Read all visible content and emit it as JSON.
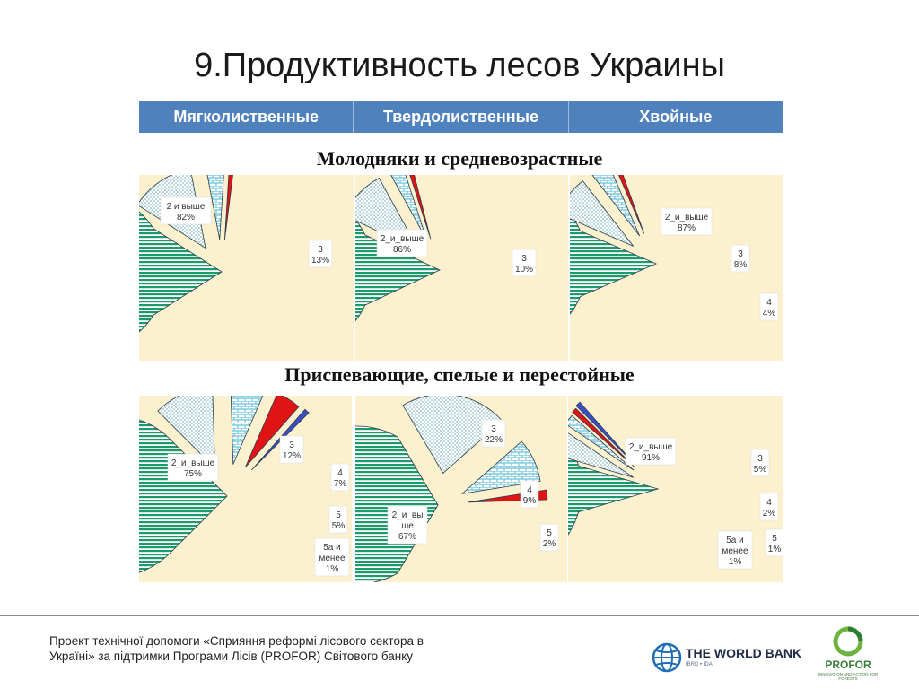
{
  "title": "9.Продуктивность лесов Украины",
  "columns": [
    "Мягколиственные",
    "Твердолиственные",
    "Хвойные"
  ],
  "rows": [
    {
      "title": "Молодняки и средневозрастные"
    },
    {
      "title": "Приспевающие, спелые и перестойные"
    }
  ],
  "colors": {
    "header": "#4f81bd",
    "panel_bg": "#fcf1cf",
    "green": "#1d9a6c",
    "dots": "#d7ecf0",
    "brick": "#7fcbe0",
    "red": "#e01414",
    "blue": "#3b4fc4"
  },
  "chart_data": [
    {
      "type": "pie",
      "row": 1,
      "column": 1,
      "slices": [
        {
          "label": [
            "2 и выше",
            "82%"
          ],
          "value": 82,
          "pattern": "stripes"
        },
        {
          "label": [
            "3",
            "13%"
          ],
          "value": 13,
          "pattern": "dots"
        },
        {
          "label": [],
          "value": 4,
          "pattern": "brick"
        },
        {
          "label": [],
          "value": 1,
          "pattern": "red"
        }
      ]
    },
    {
      "type": "pie",
      "row": 1,
      "column": 2,
      "slices": [
        {
          "label": [
            "2_и_выше",
            "86%"
          ],
          "value": 86,
          "pattern": "stripes"
        },
        {
          "label": [
            "3",
            "10%"
          ],
          "value": 10,
          "pattern": "dots"
        },
        {
          "label": [],
          "value": 3,
          "pattern": "brick"
        },
        {
          "label": [],
          "value": 1,
          "pattern": "red"
        }
      ]
    },
    {
      "type": "pie",
      "row": 1,
      "column": 3,
      "slices": [
        {
          "label": [
            "2_и_выше",
            "87%"
          ],
          "value": 87,
          "pattern": "stripes"
        },
        {
          "label": [
            "3",
            "8%"
          ],
          "value": 8,
          "pattern": "dots"
        },
        {
          "label": [
            "4",
            "4%"
          ],
          "value": 4,
          "pattern": "brick"
        },
        {
          "label": [],
          "value": 1,
          "pattern": "red"
        }
      ]
    },
    {
      "type": "pie",
      "row": 2,
      "column": 1,
      "slices": [
        {
          "label": [
            "2_и_выше",
            "75%"
          ],
          "value": 75,
          "pattern": "stripes"
        },
        {
          "label": [
            "3",
            "12%"
          ],
          "value": 12,
          "pattern": "dots"
        },
        {
          "label": [
            "4",
            "7%"
          ],
          "value": 7,
          "pattern": "brick"
        },
        {
          "label": [
            "5",
            "5%"
          ],
          "value": 5,
          "pattern": "red"
        },
        {
          "label": [
            "5а и",
            "менее",
            "1%"
          ],
          "value": 1,
          "pattern": "blue"
        }
      ]
    },
    {
      "type": "pie",
      "row": 2,
      "column": 2,
      "slices": [
        {
          "label": [
            "2_и_вы",
            "ше",
            "67%"
          ],
          "value": 67,
          "pattern": "stripes"
        },
        {
          "label": [
            "3",
            "22%"
          ],
          "value": 22,
          "pattern": "dots"
        },
        {
          "label": [
            "4",
            "9%"
          ],
          "value": 9,
          "pattern": "brick"
        },
        {
          "label": [
            "5",
            "2%"
          ],
          "value": 2,
          "pattern": "red"
        }
      ]
    },
    {
      "type": "pie",
      "row": 2,
      "column": 3,
      "slices": [
        {
          "label": [
            "2_и_выше",
            "91%"
          ],
          "value": 91,
          "pattern": "stripes"
        },
        {
          "label": [
            "3",
            "5%"
          ],
          "value": 5,
          "pattern": "dots"
        },
        {
          "label": [
            "4",
            "2%"
          ],
          "value": 2,
          "pattern": "brick"
        },
        {
          "label": [
            "5",
            "1%"
          ],
          "value": 1,
          "pattern": "red"
        },
        {
          "label": [
            "5а и",
            "менее",
            "1%"
          ],
          "value": 1,
          "pattern": "blue"
        }
      ]
    }
  ],
  "footer": {
    "text": "Проект технічної допомоги «Сприяння реформі лісового сектора в Україні» за підтримки Програми Лісів (PROFOR) Світового банку",
    "worldbank": "THE WORLD BANK",
    "worldbank_sub": "IBRD • IDA",
    "profor": "PROFOR",
    "profor_sub": "INNOVATION AND ACTION FOR FORESTS"
  }
}
